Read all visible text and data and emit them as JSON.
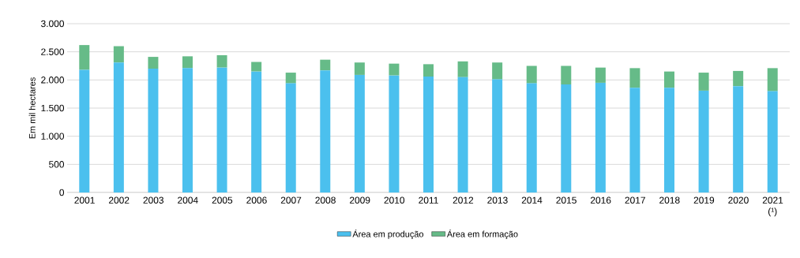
{
  "chart_data": {
    "type": "bar",
    "stacked": true,
    "ylabel": "Em mil hectares",
    "categories": [
      "2001",
      "2002",
      "2003",
      "2004",
      "2005",
      "2006",
      "2007",
      "2008",
      "2009",
      "2010",
      "2011",
      "2012",
      "2013",
      "2014",
      "2015",
      "2016",
      "2017",
      "2018",
      "2019",
      "2020",
      "2021 (¹)"
    ],
    "series": [
      {
        "name": "Área em produção",
        "color": "#4bc0ee",
        "values": [
          2180,
          2310,
          2200,
          2210,
          2220,
          2150,
          1940,
          2170,
          2090,
          2080,
          2060,
          2050,
          2010,
          1940,
          1920,
          1950,
          1860,
          1860,
          1810,
          1890,
          1800
        ]
      },
      {
        "name": "Área em formação",
        "color": "#66bb88",
        "values": [
          440,
          290,
          210,
          210,
          220,
          170,
          190,
          190,
          220,
          210,
          220,
          280,
          300,
          310,
          330,
          270,
          350,
          290,
          320,
          270,
          410
        ]
      }
    ],
    "ylim": [
      0,
      3000
    ],
    "yticks": [
      0,
      {
        "value": 500,
        "label": "500"
      },
      {
        "value": 1000,
        "label": "1.000"
      },
      {
        "value": 1500,
        "label": "1.500"
      },
      {
        "value": 2000,
        "label": "2.000"
      },
      {
        "value": 2500,
        "label": "2.500"
      },
      {
        "value": 3000,
        "label": "3.000"
      }
    ],
    "grid": "y",
    "legend": "bottom"
  }
}
